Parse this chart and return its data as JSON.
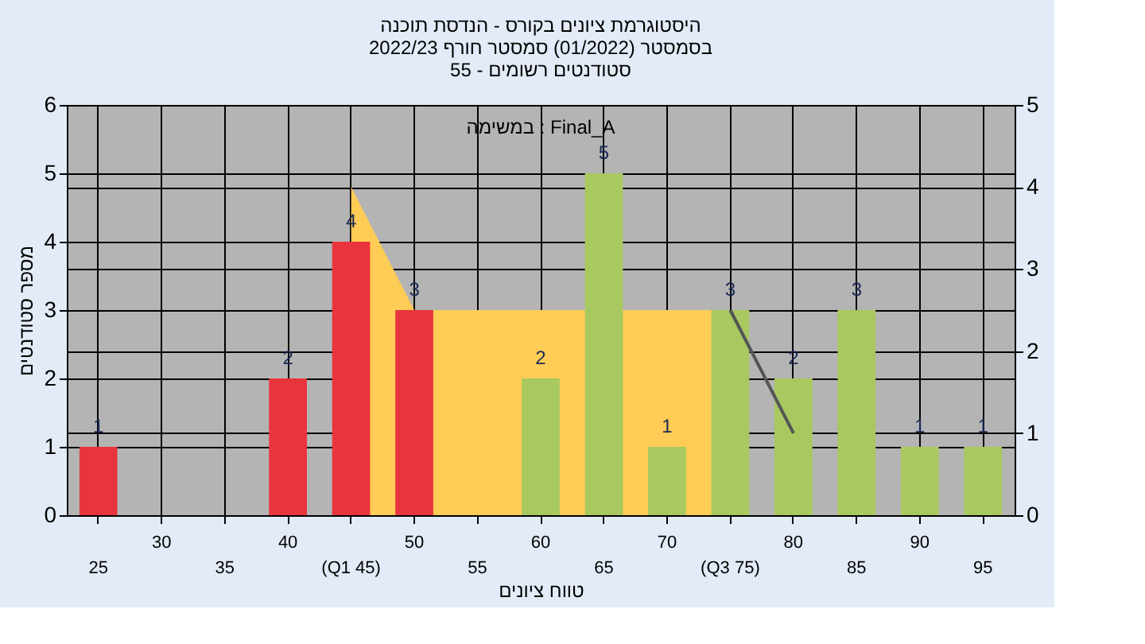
{
  "chart_data": {
    "type": "bar",
    "title": [
      "היסטוגרמת ציונים בקורס - הנדסת תוכנה",
      "בסמסטר (01/2022) סמסטר חורף 2022/23",
      "סטודנטים רשומים - 55"
    ],
    "xlabel": "טווח ציונים",
    "ylabel": "מספר סטודנטים",
    "annotations": [
      "במשימה : Final_A"
    ],
    "categories": [
      "25",
      "30",
      "35",
      "40",
      "(Q1 45)",
      "50",
      "55",
      "60",
      "65",
      "70",
      "(Q3 75)",
      "80",
      "85",
      "90",
      "95"
    ],
    "series": [
      {
        "values": [
          1,
          0,
          0,
          2,
          4,
          3,
          0,
          2,
          5,
          1,
          3,
          2,
          3,
          1,
          1
        ],
        "value_labels": [
          "1",
          null,
          null,
          "2",
          "4",
          "3",
          null,
          "2",
          "5",
          "1",
          "3",
          "2",
          "3",
          "1",
          "1"
        ],
        "colors": [
          "#e8343c",
          "#e8343c",
          "#e8343c",
          "#e8343c",
          "#e8343c",
          "#e8343c",
          "#e8343c",
          "#a8c860",
          "#a8c860",
          "#a8c860",
          "#a8c860",
          "#a8c860",
          "#a8c860",
          "#a8c860",
          "#a8c860"
        ]
      },
      {
        "type": "area",
        "axis": "y2",
        "color": "#ffcc55",
        "values": [
          null,
          null,
          null,
          null,
          4,
          2.5,
          2.5,
          2.5,
          null,
          2.5,
          2.5,
          null,
          null,
          null,
          null
        ]
      },
      {
        "type": "line",
        "axis": "y2",
        "color": "#555555",
        "values": [
          null,
          null,
          null,
          null,
          null,
          null,
          null,
          null,
          null,
          null,
          2.5,
          1,
          null,
          null,
          null
        ]
      }
    ],
    "grid": true,
    "ylim": [
      0,
      6
    ],
    "yticks": [
      0,
      1,
      2,
      3,
      4,
      5,
      6
    ],
    "y2lim": [
      0,
      5
    ],
    "y2ticks": [
      0,
      1,
      2,
      3,
      4,
      5
    ]
  }
}
